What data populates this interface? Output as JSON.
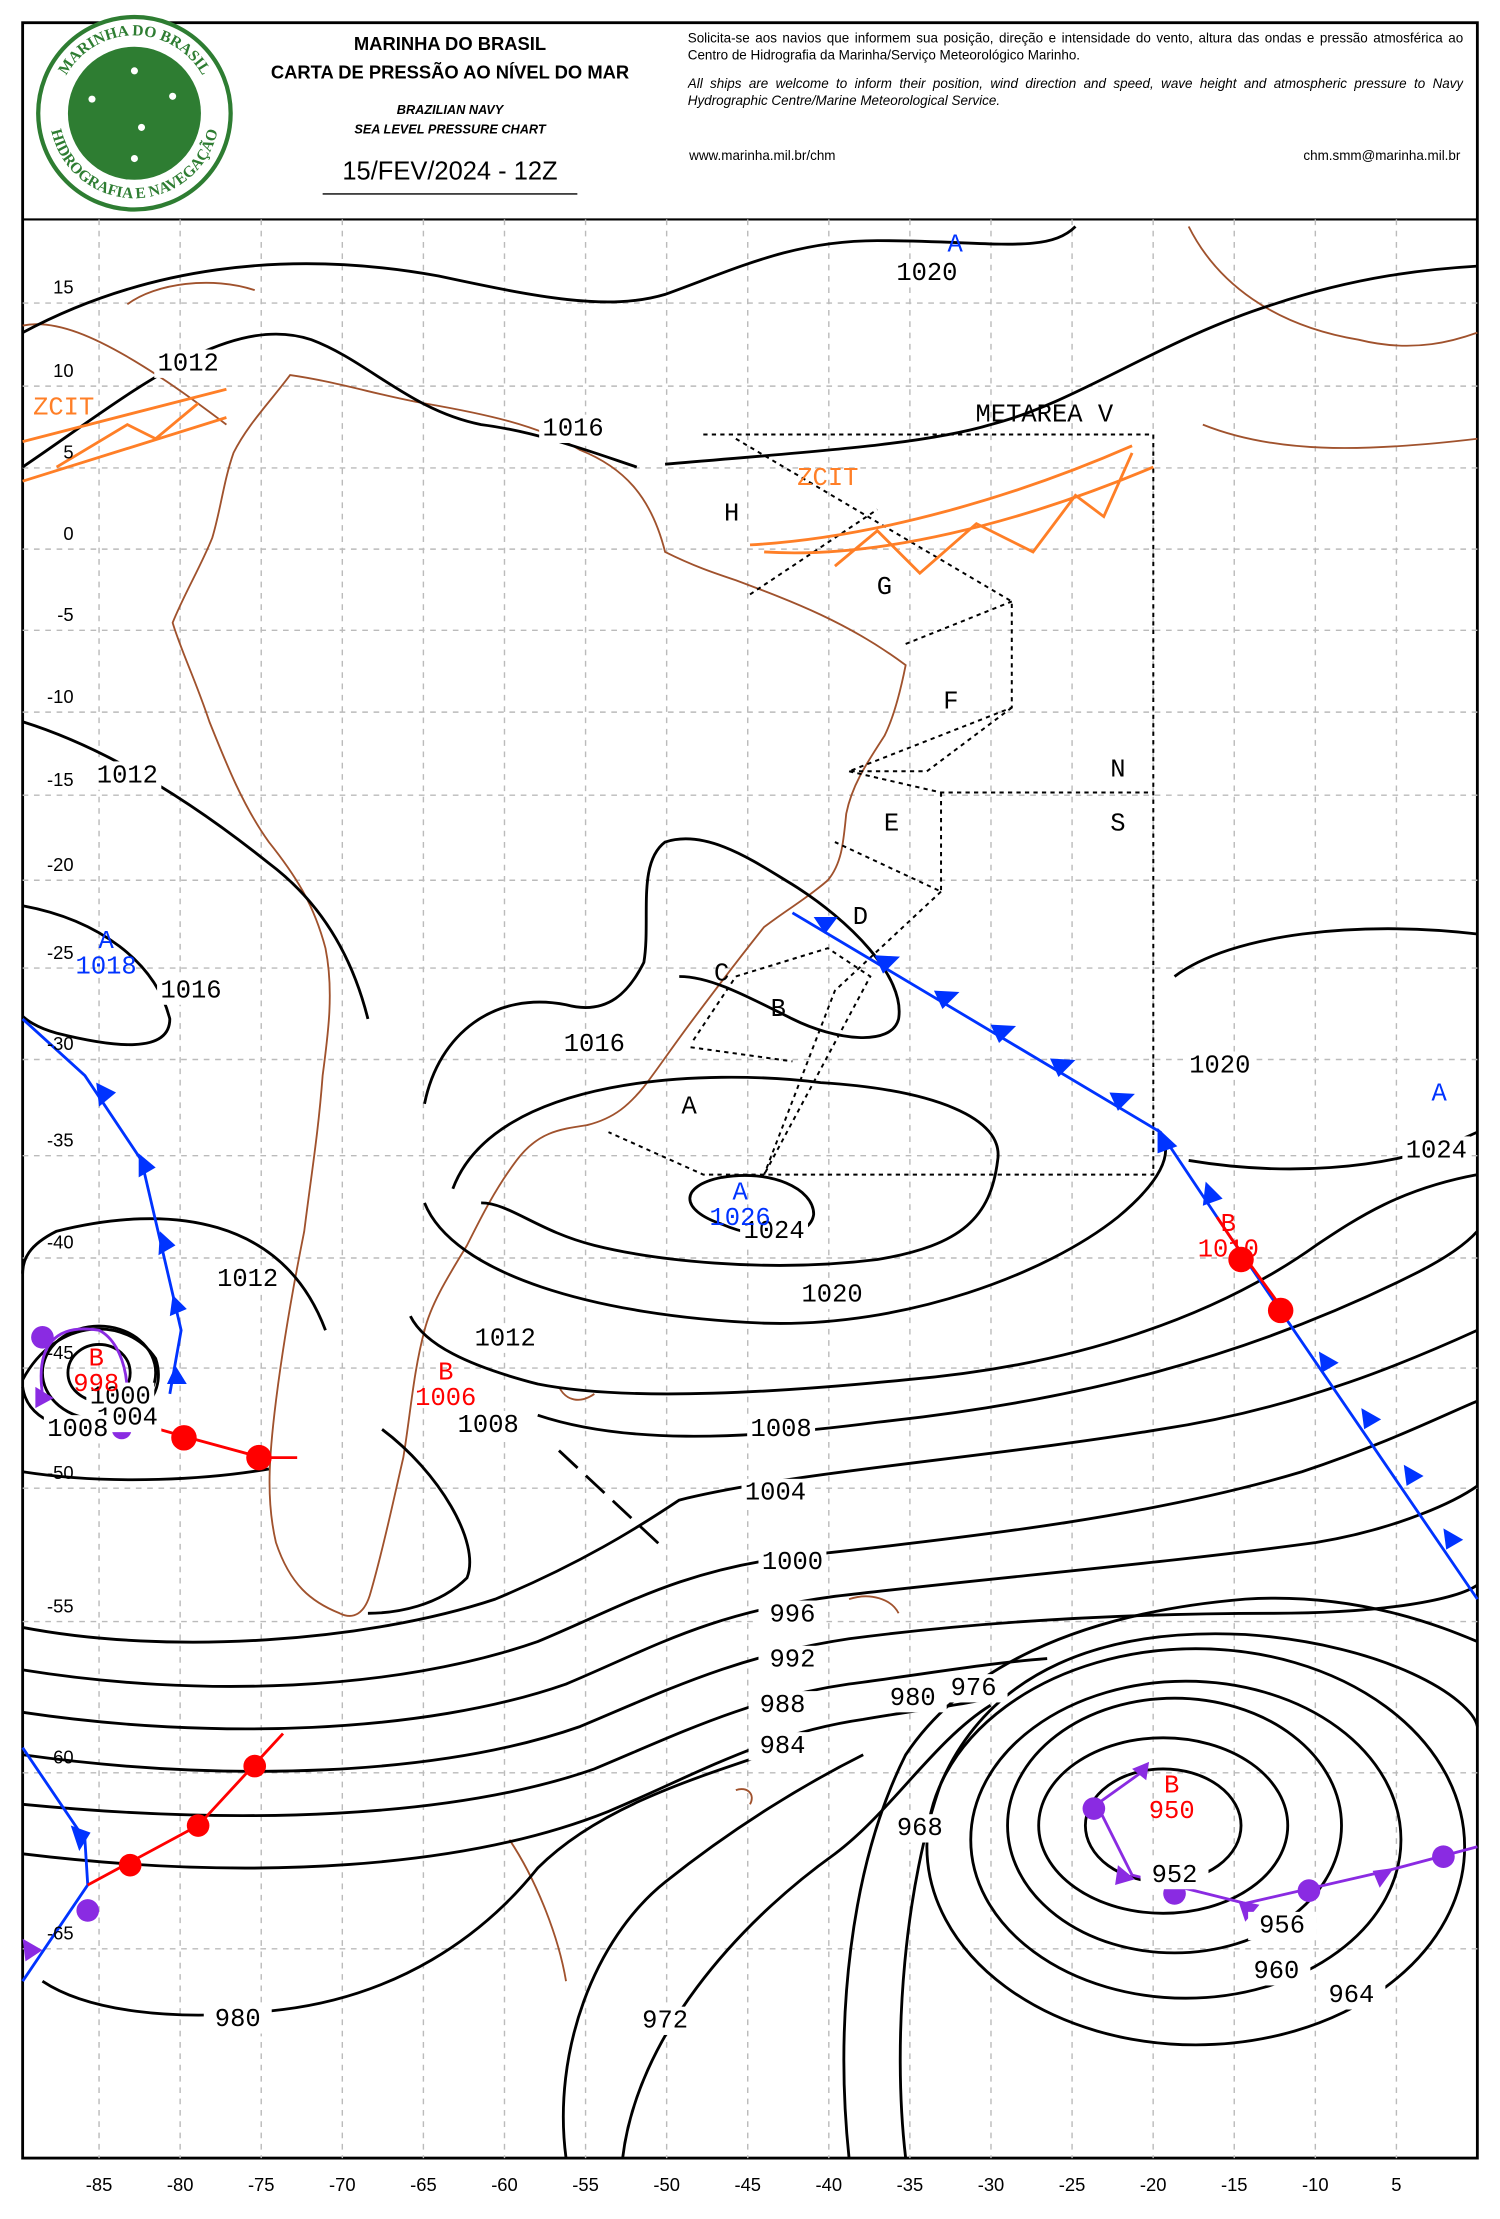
{
  "header": {
    "logo_top": "MARINHA DO BRASIL",
    "logo_bottom": "HIDROGRAFIA E NAVEGAÇÃO",
    "title_pt1": "MARINHA DO BRASIL",
    "title_pt2": "CARTA DE PRESSÃO AO NÍVEL DO MAR",
    "title_en1": "BRAZILIAN NAVY",
    "title_en2": "SEA LEVEL PRESSURE CHART",
    "date": "15/FEV/2024 - 12Z",
    "notice_pt": "Solicita-se aos navios que informem sua posição, direção e intensidade do vento, altura das ondas e pressão atmosférica ao Centro de Hidrografia da Marinha/Serviço Meteorológico Marinho.",
    "notice_en": "All ships are welcome to inform their position, wind direction and speed, wave height and atmospheric pressure to Navy Hydrographic Centre/Marine Meteorological Service.",
    "website": "www.marinha.mil.br/chm",
    "email": "chm.smm@marinha.mil.br"
  },
  "map": {
    "lat_ticks": [
      15,
      10,
      5,
      0,
      -5,
      -10,
      -15,
      -20,
      -25,
      -30,
      -35,
      -40,
      -45,
      -50,
      -55,
      -60,
      -65
    ],
    "lon_ticks": [
      -85,
      -80,
      -75,
      -70,
      -65,
      -60,
      -55,
      -50,
      -45,
      -40,
      -35,
      -30,
      -25,
      -20,
      -15,
      -10,
      {
        "value": -5,
        "label": "5"
      }
    ],
    "isobar_labels": [
      1020,
      1012,
      1016,
      1012,
      1016,
      1016,
      1020,
      1024,
      1024,
      1020,
      1012,
      1012,
      1008,
      1000,
      1004,
      1008,
      1008,
      1004,
      1000,
      996,
      992,
      988,
      984,
      980,
      976,
      968,
      952,
      956,
      960,
      964,
      972,
      980
    ],
    "highs": [
      {
        "label": "A",
        "pressure": null
      },
      {
        "label": "A",
        "pressure": 1018
      },
      {
        "label": "A",
        "pressure": 1026
      },
      {
        "label": "A",
        "pressure": null
      }
    ],
    "lows": [
      {
        "label": "B",
        "pressure": 998
      },
      {
        "label": "B",
        "pressure": 1006
      },
      {
        "label": "B",
        "pressure": 1010
      },
      {
        "label": "B",
        "pressure": 950
      }
    ],
    "metarea": "METAREA V",
    "areas": [
      "H",
      "G",
      "F",
      "N",
      "S",
      "E",
      "D",
      "C",
      "B",
      "A"
    ],
    "itcz": [
      "ZCIT",
      "ZCIT"
    ]
  }
}
